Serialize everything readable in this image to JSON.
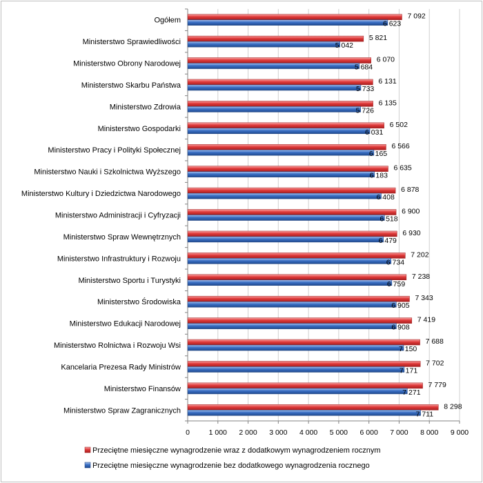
{
  "chart_data": {
    "type": "bar",
    "orientation": "horizontal",
    "categories": [
      "Ogółem",
      "Ministerstwo Sprawiedliwości",
      "Ministerstwo Obrony Narodowej",
      "Ministerstwo Skarbu Państwa",
      "Ministerstwo Zdrowia",
      "Ministerstwo Gospodarki",
      "Ministerstwo Pracy i Polityki Społecznej",
      "Ministerstwo Nauki i Szkolnictwa Wyższego",
      "Ministerstwo Kultury i Dziedzictwa Narodowego",
      "Ministerstwo Administracji i Cyfryzacji",
      "Ministerstwo Spraw Wewnętrznych",
      "Ministerstwo Infrastruktury i Rozwoju",
      "Ministerstwo Sportu i Turystyki",
      "Ministerstwo Środowiska",
      "Ministerstwo Edukacji Narodowej",
      "Ministerstwo Rolnictwa i Rozwoju Wsi",
      "Kancelaria Prezesa Rady Ministrów",
      "Ministerstwo Finansów",
      "Ministerstwo Spraw Zagranicznych"
    ],
    "series": [
      {
        "name": "Przeciętne miesięczne wynagrodzenie wraz z dodatkowym wynagrodzeniem rocznym",
        "color": "#e03a3a",
        "values": [
          7092,
          5821,
          6070,
          6131,
          6135,
          6502,
          6566,
          6635,
          6878,
          6900,
          6930,
          7202,
          7238,
          7343,
          7419,
          7688,
          7702,
          7779,
          8298
        ],
        "labels": [
          "7 092",
          "5 821",
          "6 070",
          "6 131",
          "6 135",
          "6 502",
          "6 566",
          "6 635",
          "6 878",
          "6 900",
          "6 930",
          "7 202",
          "7 238",
          "7 343",
          "7 419",
          "7 688",
          "7 702",
          "7 779",
          "8 298"
        ]
      },
      {
        "name": "Przeciętne miesięczne wynagrodzenie bez dodatkowego wynagrodzenia rocznego",
        "color": "#3a6fc4",
        "values": [
          6623,
          5042,
          5684,
          5733,
          5726,
          6031,
          6165,
          6183,
          6408,
          6518,
          6479,
          6734,
          6759,
          6905,
          6908,
          7150,
          7171,
          7271,
          7711
        ],
        "labels": [
          "6 623",
          "5 042",
          "5 684",
          "5 733",
          "5 726",
          "6 031",
          "6 165",
          "6 183",
          "6 408",
          "6 518",
          "6 479",
          "6 734",
          "6 759",
          "6 905",
          "6 908",
          "7 150",
          "7 171",
          "7 271",
          "7 711"
        ]
      }
    ],
    "xlim": [
      0,
      9000
    ],
    "ticks": [
      0,
      1000,
      2000,
      3000,
      4000,
      5000,
      6000,
      7000,
      8000,
      9000
    ],
    "tick_labels": [
      "0",
      "1 000",
      "2 000",
      "3 000",
      "4 000",
      "5 000",
      "6 000",
      "7 000",
      "8 000",
      "9 000"
    ],
    "grid": true,
    "legend_position": "bottom"
  }
}
